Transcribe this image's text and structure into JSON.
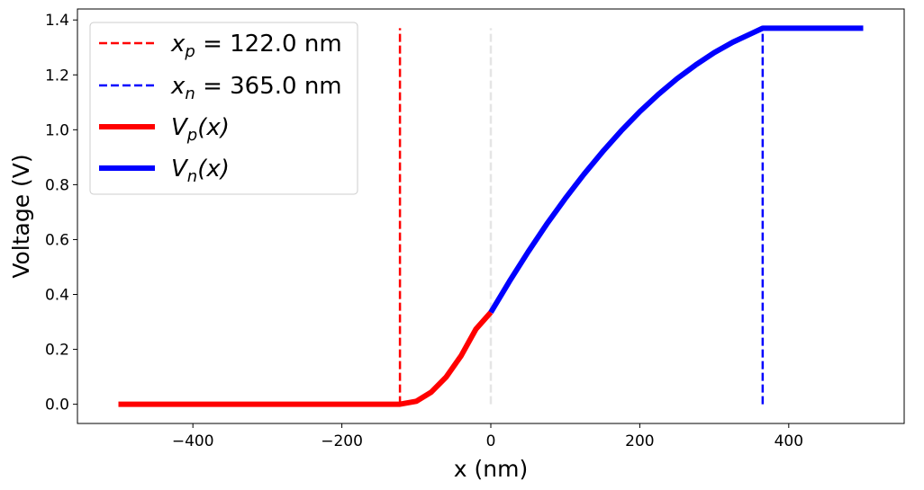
{
  "chart_data": {
    "type": "line",
    "xlabel": "x (nm)",
    "ylabel": "Voltage (V)",
    "xlim": [
      -555,
      555
    ],
    "ylim": [
      -0.07,
      1.44
    ],
    "x_ticks": [
      -400,
      -200,
      0,
      200,
      400
    ],
    "x_tick_labels": [
      "−400",
      "−200",
      "0",
      "200",
      "400"
    ],
    "y_ticks": [
      0.0,
      0.2,
      0.4,
      0.6,
      0.8,
      1.0,
      1.2,
      1.4
    ],
    "y_tick_labels": [
      "0.0",
      "0.2",
      "0.4",
      "0.6",
      "0.8",
      "1.0",
      "1.2",
      "1.4"
    ],
    "grid": false,
    "legend_placement": "upper-left",
    "colors": {
      "p": "#ff0000",
      "n": "#0000ff",
      "junction": "#e5e5e5"
    },
    "series": [
      {
        "name": "V_p(x)",
        "legend_label": {
          "base": "V",
          "sub": "p",
          "rest": "(x)"
        },
        "color": "#ff0000",
        "style": "solid",
        "x": [
          -500,
          -400,
          -300,
          -200,
          -122,
          -100,
          -80,
          -60,
          -40,
          -20,
          0
        ],
        "y": [
          0.0,
          0.0,
          0.0,
          0.0,
          0.0,
          0.011,
          0.044,
          0.099,
          0.176,
          0.274,
          0.335
        ]
      },
      {
        "name": "V_n(x)",
        "legend_label": {
          "base": "V",
          "sub": "n",
          "rest": "(x)"
        },
        "color": "#0000ff",
        "style": "solid",
        "x": [
          0,
          25,
          50,
          75,
          100,
          125,
          150,
          175,
          200,
          225,
          250,
          275,
          300,
          325,
          350,
          365,
          400,
          450,
          500
        ],
        "y": [
          0.335,
          0.448,
          0.555,
          0.656,
          0.75,
          0.838,
          0.92,
          0.996,
          1.066,
          1.129,
          1.186,
          1.236,
          1.281,
          1.319,
          1.351,
          1.37,
          1.37,
          1.37,
          1.37
        ]
      }
    ],
    "vlines": [
      {
        "name": "x_p",
        "legend_label": {
          "base": "x",
          "sub": "p",
          "rest": " = 122.0 nm"
        },
        "x": -122,
        "y_range": [
          0.0,
          1.37
        ],
        "color": "#ff0000",
        "style": "dashed"
      },
      {
        "name": "x_n",
        "legend_label": {
          "base": "x",
          "sub": "n",
          "rest": " = 365.0 nm"
        },
        "x": 365,
        "y_range": [
          0.0,
          1.37
        ],
        "color": "#0000ff",
        "style": "dashed"
      },
      {
        "name": "junction",
        "x": 0,
        "y_range": [
          0.0,
          1.37
        ],
        "color": "#e5e5e5",
        "style": "dashed"
      }
    ]
  }
}
